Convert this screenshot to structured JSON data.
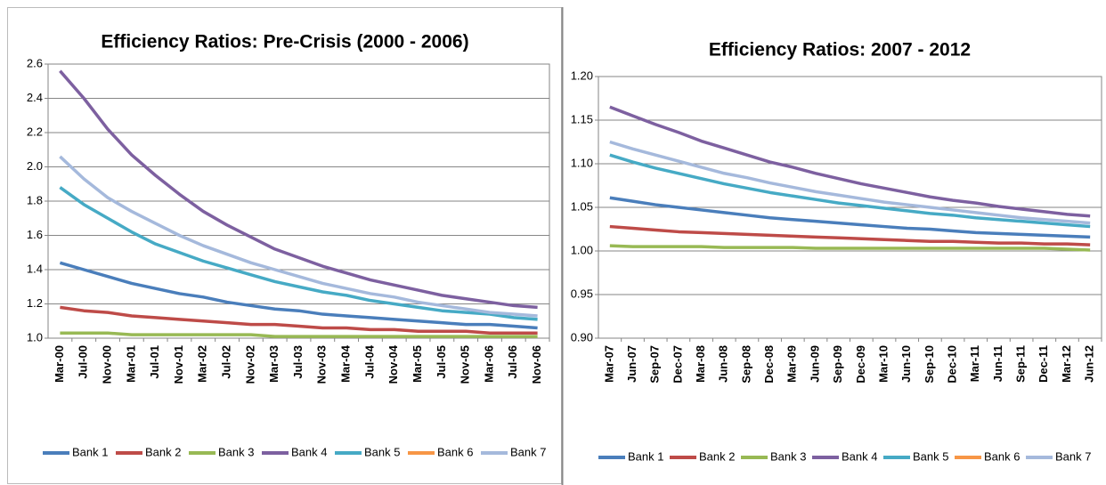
{
  "chart_data": [
    {
      "type": "line",
      "title": "Efficiency Ratios: Pre-Crisis (2000 -  2006)",
      "categories": [
        "Mar-00",
        "Jul-00",
        "Nov-00",
        "Mar-01",
        "Jul-01",
        "Nov-01",
        "Mar-02",
        "Jul-02",
        "Nov-02",
        "Mar-03",
        "Jul-03",
        "Nov-03",
        "Mar-04",
        "Jul-04",
        "Nov-04",
        "Mar-05",
        "Jul-05",
        "Nov-05",
        "Mar-06",
        "Jul-06",
        "Nov-06"
      ],
      "ylim": [
        1.0,
        2.6
      ],
      "yticks": [
        {
          "value": 1.0,
          "label": "1.0"
        },
        1.2,
        1.4,
        1.6,
        1.8,
        {
          "value": 2.0,
          "label": "2.0"
        },
        2.2,
        2.4,
        2.6
      ],
      "grid": true,
      "legend": "bottom",
      "series": [
        {
          "name": "Bank 1",
          "color": "#4a7ebb",
          "values": [
            1.44,
            1.4,
            1.36,
            1.32,
            1.29,
            1.26,
            1.24,
            1.21,
            1.19,
            1.17,
            1.16,
            1.14,
            1.13,
            1.12,
            1.11,
            1.1,
            1.09,
            1.08,
            1.08,
            1.07,
            1.06
          ]
        },
        {
          "name": "Bank 2",
          "color": "#be4b48",
          "values": [
            1.18,
            1.16,
            1.15,
            1.13,
            1.12,
            1.11,
            1.1,
            1.09,
            1.08,
            1.08,
            1.07,
            1.06,
            1.06,
            1.05,
            1.05,
            1.04,
            1.04,
            1.04,
            1.03,
            1.03,
            1.03
          ]
        },
        {
          "name": "Bank 3",
          "color": "#98b954",
          "values": [
            1.03,
            1.03,
            1.03,
            1.02,
            1.02,
            1.02,
            1.02,
            1.02,
            1.02,
            1.01,
            1.01,
            1.01,
            1.01,
            1.01,
            1.01,
            1.01,
            1.01,
            1.01,
            1.01,
            1.01,
            1.01
          ]
        },
        {
          "name": "Bank 4",
          "color": "#7d60a0",
          "values": [
            2.56,
            2.4,
            2.22,
            2.07,
            1.95,
            1.84,
            1.74,
            1.66,
            1.59,
            1.52,
            1.47,
            1.42,
            1.38,
            1.34,
            1.31,
            1.28,
            1.25,
            1.23,
            1.21,
            1.19,
            1.18
          ]
        },
        {
          "name": "Bank 5",
          "color": "#46aac5",
          "values": [
            1.88,
            1.78,
            1.7,
            1.62,
            1.55,
            1.5,
            1.45,
            1.41,
            1.37,
            1.33,
            1.3,
            1.27,
            1.25,
            1.22,
            1.2,
            1.18,
            1.16,
            1.15,
            1.14,
            1.12,
            1.11
          ]
        },
        {
          "name": "Bank 6",
          "color": "#f79646",
          "values": [
            null,
            null,
            null,
            null,
            null,
            null,
            null,
            null,
            null,
            null,
            null,
            null,
            null,
            null,
            null,
            null,
            null,
            null,
            null,
            null,
            null
          ]
        },
        {
          "name": "Bank 7",
          "color": "#a5b9dc",
          "values": [
            2.06,
            1.93,
            1.82,
            1.74,
            1.67,
            1.6,
            1.54,
            1.49,
            1.44,
            1.4,
            1.36,
            1.32,
            1.29,
            1.26,
            1.24,
            1.21,
            1.19,
            1.17,
            1.15,
            1.14,
            1.13
          ]
        }
      ]
    },
    {
      "type": "line",
      "title": "Efficiency Ratios: 2007 - 2012",
      "categories": [
        "Mar-07",
        "Jun-07",
        "Sep-07",
        "Dec-07",
        "Mar-08",
        "Jun-08",
        "Sep-08",
        "Dec-08",
        "Mar-09",
        "Jun-09",
        "Sep-09",
        "Dec-09",
        "Mar-10",
        "Jun-10",
        "Sep-10",
        "Dec-10",
        "Mar-11",
        "Jun-11",
        "Sep-11",
        "Dec-11",
        "Mar-12",
        "Jun-12"
      ],
      "ylim": [
        0.9,
        1.2
      ],
      "yticks": [
        {
          "value": 0.9,
          "label": "0.90"
        },
        0.95,
        {
          "value": 1.0,
          "label": "1.00"
        },
        1.05,
        {
          "value": 1.1,
          "label": "1.10"
        },
        1.15,
        {
          "value": 1.2,
          "label": "1.20"
        }
      ],
      "grid": true,
      "legend": "bottom",
      "series": [
        {
          "name": "Bank 1",
          "color": "#4a7ebb",
          "values": [
            1.061,
            1.057,
            1.053,
            1.05,
            1.047,
            1.044,
            1.041,
            1.038,
            1.036,
            1.034,
            1.032,
            1.03,
            1.028,
            1.026,
            1.025,
            1.023,
            1.021,
            1.02,
            1.019,
            1.018,
            1.017,
            1.016
          ]
        },
        {
          "name": "Bank 2",
          "color": "#be4b48",
          "values": [
            1.028,
            1.026,
            1.024,
            1.022,
            1.021,
            1.02,
            1.019,
            1.018,
            1.017,
            1.016,
            1.015,
            1.014,
            1.013,
            1.012,
            1.011,
            1.011,
            1.01,
            1.009,
            1.009,
            1.008,
            1.008,
            1.007
          ]
        },
        {
          "name": "Bank 3",
          "color": "#98b954",
          "values": [
            1.006,
            1.005,
            1.005,
            1.005,
            1.005,
            1.004,
            1.004,
            1.004,
            1.004,
            1.003,
            1.003,
            1.003,
            1.003,
            1.003,
            1.003,
            1.003,
            1.003,
            1.003,
            1.003,
            1.003,
            1.002,
            1.001
          ]
        },
        {
          "name": "Bank 4",
          "color": "#7d60a0",
          "values": [
            1.165,
            1.155,
            1.145,
            1.136,
            1.126,
            1.118,
            1.11,
            1.102,
            1.096,
            1.089,
            1.083,
            1.077,
            1.072,
            1.067,
            1.062,
            1.058,
            1.055,
            1.051,
            1.048,
            1.045,
            1.042,
            1.04
          ]
        },
        {
          "name": "Bank 5",
          "color": "#46aac5",
          "values": [
            1.11,
            1.102,
            1.095,
            1.089,
            1.083,
            1.077,
            1.072,
            1.067,
            1.063,
            1.059,
            1.055,
            1.052,
            1.049,
            1.046,
            1.043,
            1.041,
            1.038,
            1.036,
            1.034,
            1.032,
            1.03,
            1.028
          ]
        },
        {
          "name": "Bank 6",
          "color": "#f79646",
          "values": [
            null,
            null,
            null,
            null,
            null,
            null,
            null,
            null,
            null,
            null,
            null,
            null,
            null,
            null,
            null,
            null,
            null,
            null,
            null,
            null,
            null,
            null
          ]
        },
        {
          "name": "Bank 7",
          "color": "#a5b9dc",
          "values": [
            1.125,
            1.117,
            1.11,
            1.103,
            1.096,
            1.089,
            1.084,
            1.078,
            1.073,
            1.068,
            1.064,
            1.06,
            1.056,
            1.053,
            1.05,
            1.047,
            1.044,
            1.041,
            1.038,
            1.036,
            1.034,
            1.032
          ]
        }
      ]
    }
  ]
}
